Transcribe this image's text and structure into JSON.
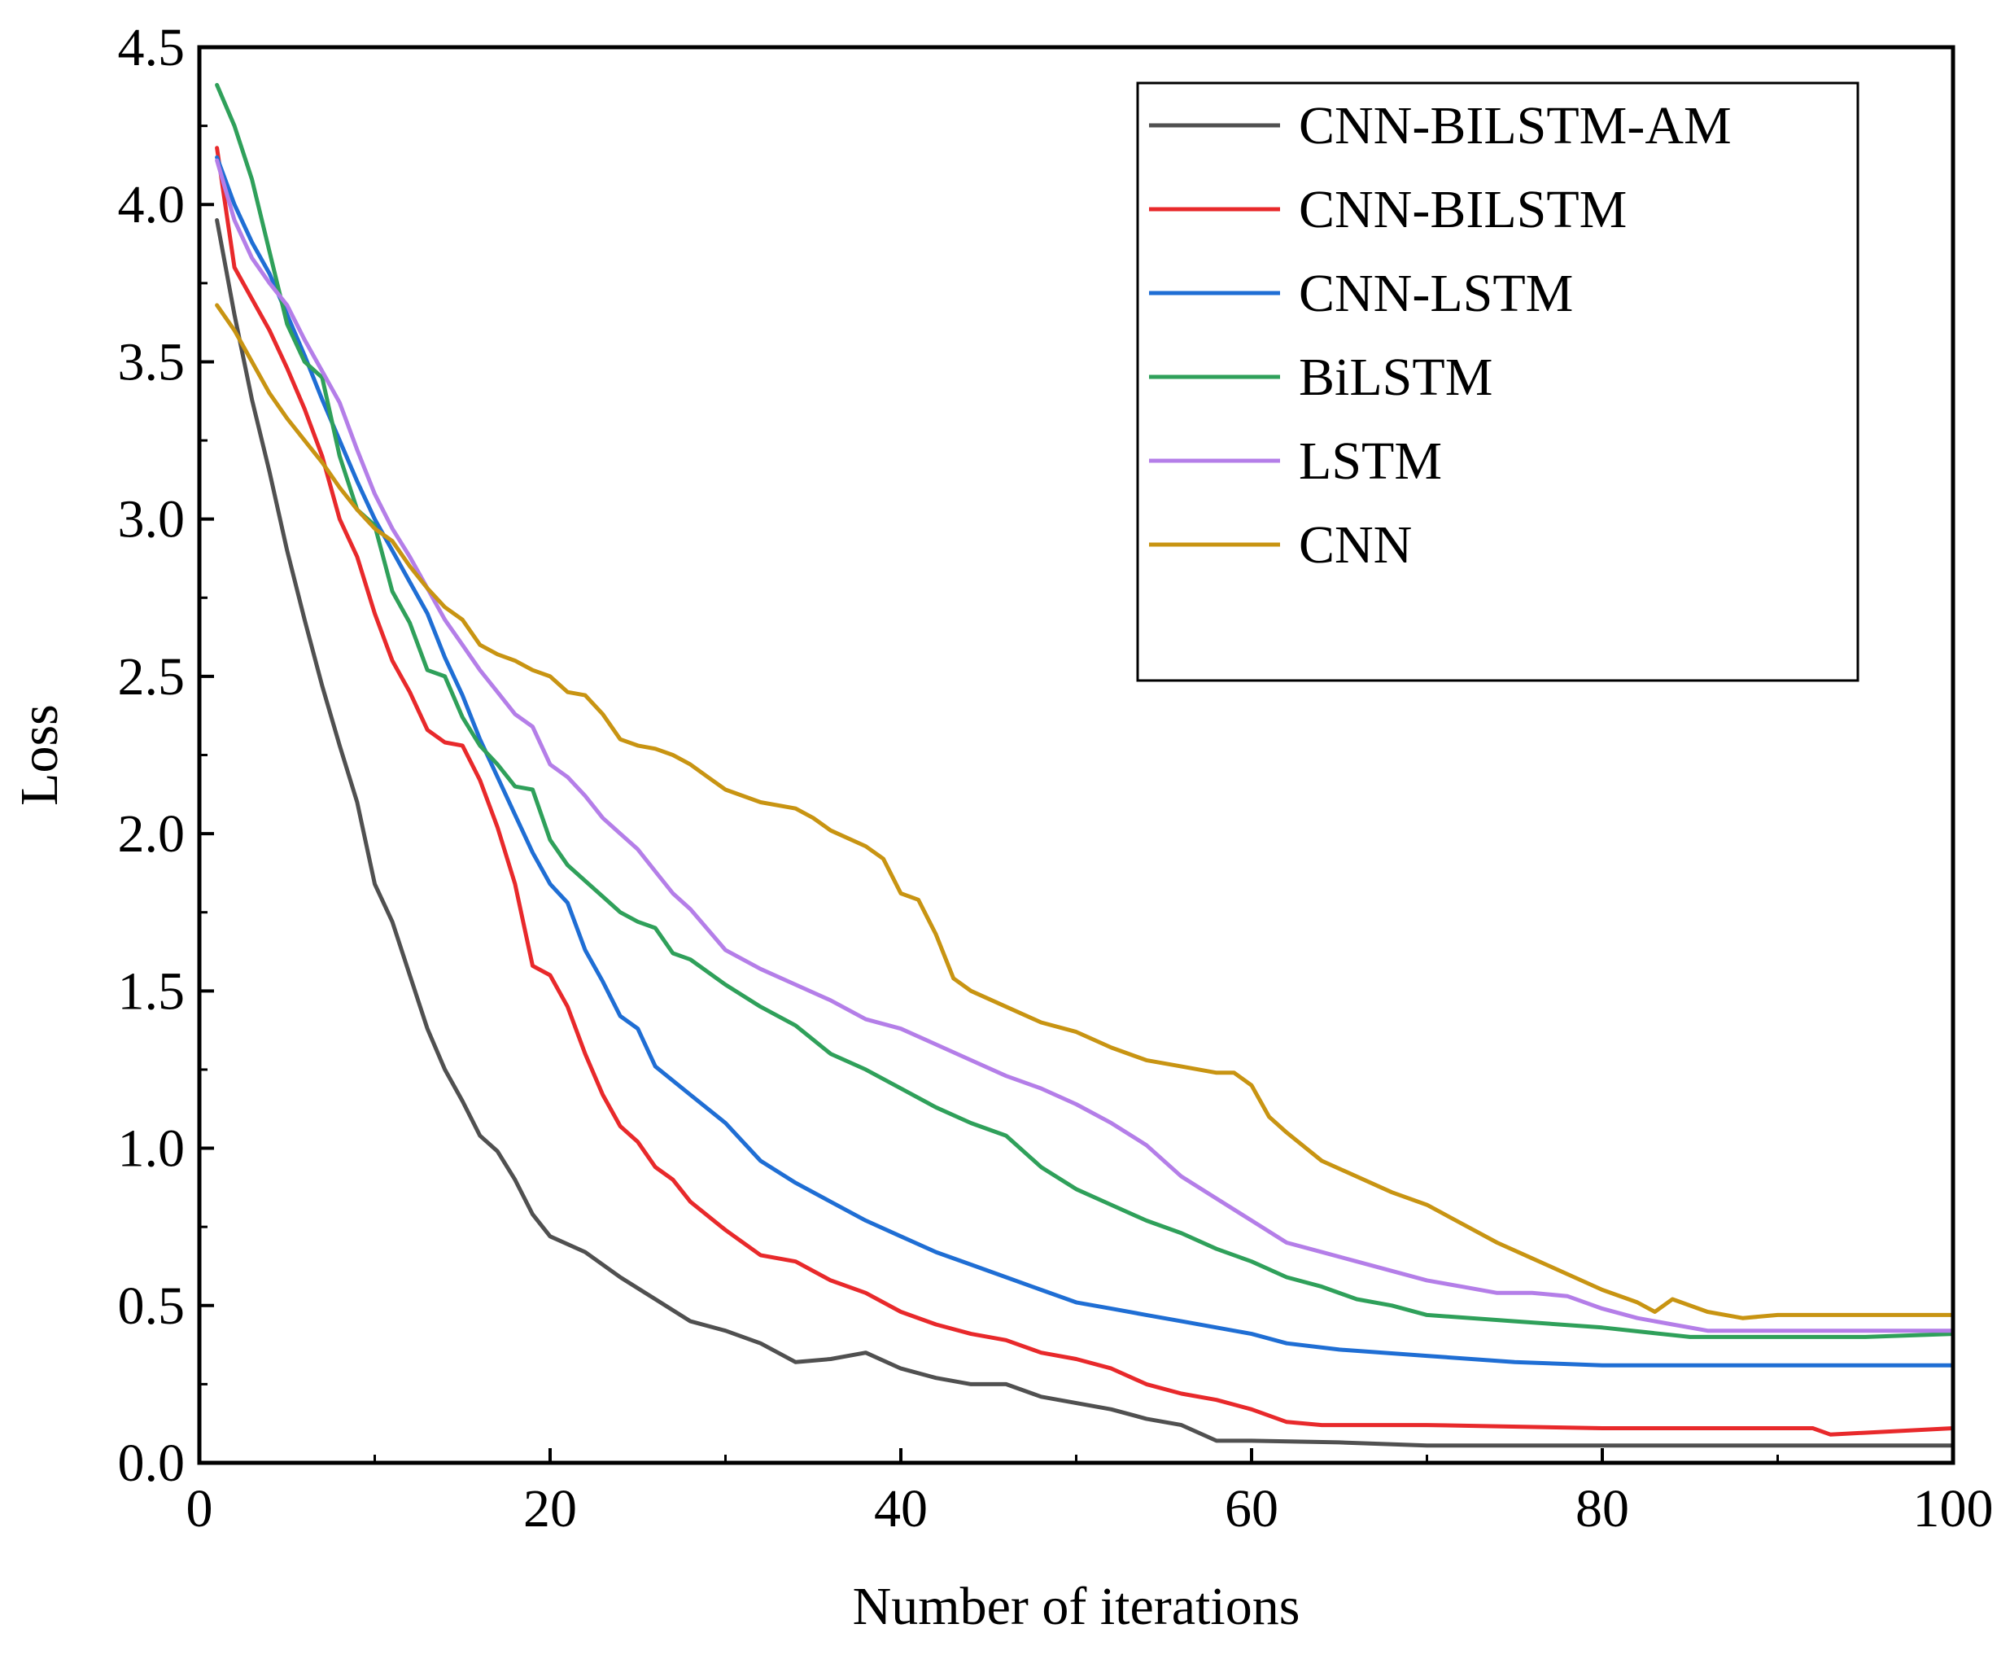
{
  "chart_data": {
    "type": "line",
    "title": "",
    "xlabel": "Number of iterations",
    "ylabel": "Loss",
    "xlim": [
      0,
      100
    ],
    "ylim": [
      0,
      4.5
    ],
    "xticks": [
      "0",
      "20",
      "40",
      "60",
      "80",
      "100"
    ],
    "yticks": [
      "0.0",
      "0.5",
      "1.0",
      "1.5",
      "2.0",
      "2.5",
      "3.0",
      "3.5",
      "4.0",
      "4.5"
    ],
    "legend_position": "top-right",
    "grid": false,
    "series": [
      {
        "name": " CNN-BILSTM-AM",
        "color": "#505050",
        "x": [
          1,
          2,
          3,
          4,
          5,
          6,
          7,
          8,
          9,
          10,
          11,
          12,
          13,
          14,
          15,
          16,
          17,
          18,
          19,
          20,
          22,
          24,
          26,
          28,
          30,
          32,
          34,
          36,
          38,
          40,
          42,
          44,
          46,
          48,
          50,
          52,
          54,
          56,
          58,
          60,
          65,
          70,
          80,
          90,
          100
        ],
        "y": [
          3.95,
          3.65,
          3.38,
          3.15,
          2.9,
          2.68,
          2.47,
          2.28,
          2.1,
          1.84,
          1.72,
          1.55,
          1.38,
          1.25,
          1.15,
          1.04,
          0.99,
          0.9,
          0.79,
          0.72,
          0.67,
          0.59,
          0.52,
          0.45,
          0.42,
          0.38,
          0.32,
          0.33,
          0.35,
          0.3,
          0.27,
          0.25,
          0.25,
          0.21,
          0.19,
          0.17,
          0.14,
          0.12,
          0.07,
          0.07,
          0.065,
          0.055,
          0.055,
          0.055,
          0.055
        ]
      },
      {
        "name": "CNN-BILSTM",
        "color": "#e8292b",
        "x": [
          1,
          2,
          3,
          4,
          5,
          6,
          7,
          8,
          9,
          10,
          11,
          12,
          13,
          14,
          15,
          16,
          17,
          18,
          19,
          20,
          21,
          22,
          23,
          24,
          25,
          26,
          27,
          28,
          30,
          32,
          34,
          36,
          38,
          40,
          42,
          44,
          46,
          48,
          50,
          52,
          54,
          56,
          58,
          60,
          62,
          64,
          70,
          80,
          90,
          92,
          93,
          100
        ],
        "y": [
          4.18,
          3.8,
          3.7,
          3.6,
          3.48,
          3.35,
          3.2,
          3.0,
          2.88,
          2.7,
          2.55,
          2.45,
          2.33,
          2.29,
          2.28,
          2.17,
          2.02,
          1.84,
          1.58,
          1.55,
          1.45,
          1.3,
          1.17,
          1.07,
          1.02,
          0.94,
          0.9,
          0.83,
          0.74,
          0.66,
          0.64,
          0.58,
          0.54,
          0.48,
          0.44,
          0.41,
          0.39,
          0.35,
          0.33,
          0.3,
          0.25,
          0.22,
          0.2,
          0.17,
          0.13,
          0.12,
          0.12,
          0.11,
          0.11,
          0.11,
          0.09,
          0.11
        ]
      },
      {
        "name": "CNN-LSTM",
        "color": "#1f6ed4",
        "x": [
          1,
          2,
          3,
          4,
          5,
          6,
          7,
          8,
          9,
          10,
          11,
          12,
          13,
          14,
          15,
          16,
          17,
          18,
          19,
          20,
          21,
          22,
          23,
          24,
          25,
          26,
          28,
          30,
          32,
          34,
          36,
          38,
          40,
          42,
          44,
          46,
          48,
          50,
          52,
          54,
          56,
          58,
          60,
          62,
          65,
          70,
          75,
          80,
          85,
          90,
          95,
          100
        ],
        "y": [
          4.15,
          4.0,
          3.88,
          3.78,
          3.65,
          3.52,
          3.38,
          3.25,
          3.12,
          3.0,
          2.9,
          2.8,
          2.7,
          2.56,
          2.44,
          2.3,
          2.18,
          2.06,
          1.94,
          1.84,
          1.78,
          1.63,
          1.53,
          1.42,
          1.38,
          1.26,
          1.17,
          1.08,
          0.96,
          0.89,
          0.83,
          0.77,
          0.72,
          0.67,
          0.63,
          0.59,
          0.55,
          0.51,
          0.49,
          0.47,
          0.45,
          0.43,
          0.41,
          0.38,
          0.36,
          0.34,
          0.32,
          0.31,
          0.31,
          0.31,
          0.31,
          0.31
        ]
      },
      {
        "name": "BiLSTM",
        "color": "#2fa05a",
        "x": [
          1,
          2,
          3,
          4,
          5,
          6,
          7,
          8,
          9,
          10,
          11,
          12,
          13,
          14,
          15,
          16,
          17,
          18,
          19,
          20,
          21,
          22,
          23,
          24,
          25,
          26,
          27,
          28,
          30,
          32,
          34,
          36,
          38,
          40,
          42,
          44,
          46,
          48,
          50,
          52,
          54,
          56,
          58,
          60,
          62,
          64,
          66,
          68,
          70,
          75,
          80,
          85,
          90,
          95,
          100
        ],
        "y": [
          4.38,
          4.25,
          4.08,
          3.85,
          3.62,
          3.5,
          3.45,
          3.2,
          3.03,
          2.98,
          2.77,
          2.67,
          2.52,
          2.5,
          2.37,
          2.28,
          2.22,
          2.15,
          2.14,
          1.98,
          1.9,
          1.85,
          1.8,
          1.75,
          1.72,
          1.7,
          1.62,
          1.6,
          1.52,
          1.45,
          1.39,
          1.3,
          1.25,
          1.19,
          1.13,
          1.08,
          1.04,
          0.94,
          0.87,
          0.82,
          0.77,
          0.73,
          0.68,
          0.64,
          0.59,
          0.56,
          0.52,
          0.5,
          0.47,
          0.45,
          0.43,
          0.4,
          0.4,
          0.4,
          0.41
        ]
      },
      {
        "name": "LSTM",
        "color": "#b47ee8",
        "x": [
          1,
          2,
          3,
          4,
          5,
          6,
          7,
          8,
          9,
          10,
          11,
          12,
          13,
          14,
          15,
          16,
          17,
          18,
          19,
          20,
          21,
          22,
          23,
          24,
          25,
          26,
          27,
          28,
          30,
          32,
          34,
          36,
          38,
          40,
          42,
          44,
          46,
          48,
          50,
          52,
          54,
          56,
          58,
          60,
          62,
          64,
          66,
          68,
          70,
          72,
          74,
          76,
          78,
          80,
          82,
          84,
          86,
          90,
          95,
          100
        ],
        "y": [
          4.14,
          3.95,
          3.83,
          3.75,
          3.68,
          3.57,
          3.47,
          3.37,
          3.22,
          3.08,
          2.97,
          2.88,
          2.78,
          2.68,
          2.6,
          2.52,
          2.45,
          2.38,
          2.34,
          2.22,
          2.18,
          2.12,
          2.05,
          2.0,
          1.95,
          1.88,
          1.81,
          1.76,
          1.63,
          1.57,
          1.52,
          1.47,
          1.41,
          1.38,
          1.33,
          1.28,
          1.23,
          1.19,
          1.14,
          1.08,
          1.01,
          0.91,
          0.84,
          0.77,
          0.7,
          0.67,
          0.64,
          0.61,
          0.58,
          0.56,
          0.54,
          0.54,
          0.53,
          0.49,
          0.46,
          0.44,
          0.42,
          0.42,
          0.42,
          0.42
        ]
      },
      {
        "name": "CNN",
        "color": "#c89412",
        "x": [
          1,
          2,
          3,
          4,
          5,
          6,
          7,
          8,
          9,
          10,
          11,
          12,
          13,
          14,
          15,
          16,
          17,
          18,
          19,
          20,
          21,
          22,
          23,
          24,
          25,
          26,
          27,
          28,
          29,
          30,
          32,
          34,
          35,
          36,
          38,
          39,
          40,
          41,
          42,
          43,
          44,
          46,
          48,
          50,
          52,
          54,
          56,
          58,
          59,
          60,
          61,
          62,
          64,
          66,
          68,
          70,
          72,
          74,
          76,
          78,
          80,
          82,
          83,
          84,
          86,
          88,
          90,
          95,
          100
        ],
        "y": [
          3.68,
          3.6,
          3.5,
          3.4,
          3.32,
          3.25,
          3.18,
          3.1,
          3.03,
          2.97,
          2.93,
          2.85,
          2.78,
          2.72,
          2.68,
          2.6,
          2.57,
          2.55,
          2.52,
          2.5,
          2.45,
          2.44,
          2.38,
          2.3,
          2.28,
          2.27,
          2.25,
          2.22,
          2.18,
          2.14,
          2.1,
          2.08,
          2.05,
          2.01,
          1.96,
          1.92,
          1.81,
          1.79,
          1.68,
          1.54,
          1.5,
          1.45,
          1.4,
          1.37,
          1.32,
          1.28,
          1.26,
          1.24,
          1.24,
          1.2,
          1.1,
          1.05,
          0.96,
          0.91,
          0.86,
          0.82,
          0.76,
          0.7,
          0.65,
          0.6,
          0.55,
          0.51,
          0.48,
          0.52,
          0.48,
          0.46,
          0.47,
          0.47,
          0.47
        ]
      }
    ]
  }
}
